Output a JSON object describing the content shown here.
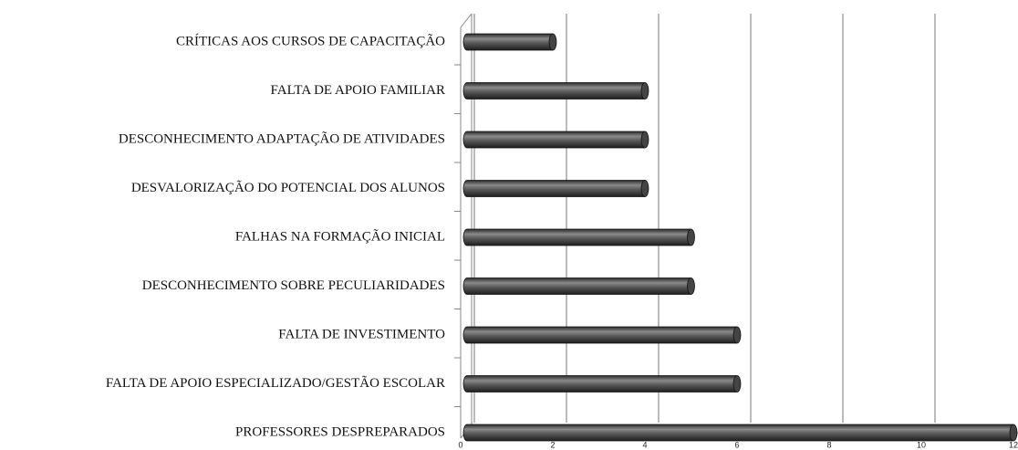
{
  "chart_data": {
    "type": "bar",
    "orientation": "horizontal",
    "categories": [
      "CRÍTICAS AOS CURSOS DE CAPACITAÇÃO",
      "FALTA DE APOIO FAMILIAR",
      "DESCONHECIMENTO ADAPTAÇÃO DE ATIVIDADES",
      "DESVALORIZAÇÃO DO POTENCIAL DOS ALUNOS",
      "FALHAS NA FORMAÇÃO INICIAL",
      "DESCONHECIMENTO SOBRE PECULIARIDADES",
      "FALTA DE INVESTIMENTO",
      "FALTA DE APOIO ESPECIALIZADO/GESTÃO ESCOLAR",
      "PROFESSORES DESPREPARADOS"
    ],
    "values": [
      2,
      4,
      4,
      4,
      5,
      5,
      6,
      6,
      12
    ],
    "color": "#555555",
    "xlim": [
      0,
      12
    ],
    "xticks": [
      0,
      2,
      4,
      6,
      8,
      10,
      12
    ],
    "grid": true
  }
}
